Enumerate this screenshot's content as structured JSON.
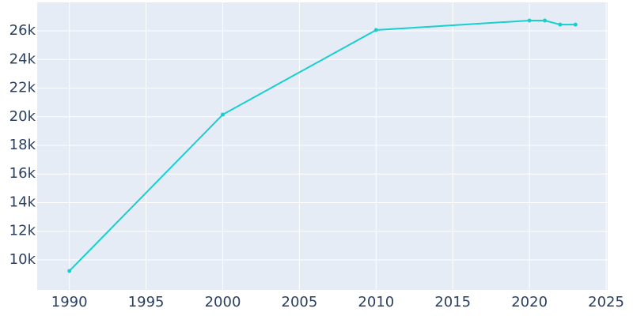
{
  "chart_data": {
    "type": "line",
    "x": [
      1990,
      2000,
      2010,
      2020,
      2021,
      2022,
      2023
    ],
    "series": [
      {
        "color": "#17cfcf",
        "values": [
          9227,
          20150,
          26060,
          26720,
          26720,
          26440,
          26440
        ]
      }
    ],
    "xlim": [
      1987.9,
      2025.1
    ],
    "xticks": [
      1990,
      1995,
      2000,
      2005,
      2010,
      2015,
      2020,
      2025
    ],
    "ylim": [
      7900,
      27990
    ],
    "yticks": [
      {
        "value": 10000,
        "label": "10k"
      },
      {
        "value": 12000,
        "label": "12k"
      },
      {
        "value": 14000,
        "label": "14k"
      },
      {
        "value": 16000,
        "label": "16k"
      },
      {
        "value": 18000,
        "label": "18k"
      },
      {
        "value": 20000,
        "label": "20k"
      },
      {
        "value": 22000,
        "label": "22k"
      },
      {
        "value": 24000,
        "label": "24k"
      },
      {
        "value": 26000,
        "label": "26k"
      }
    ],
    "grid": true
  }
}
